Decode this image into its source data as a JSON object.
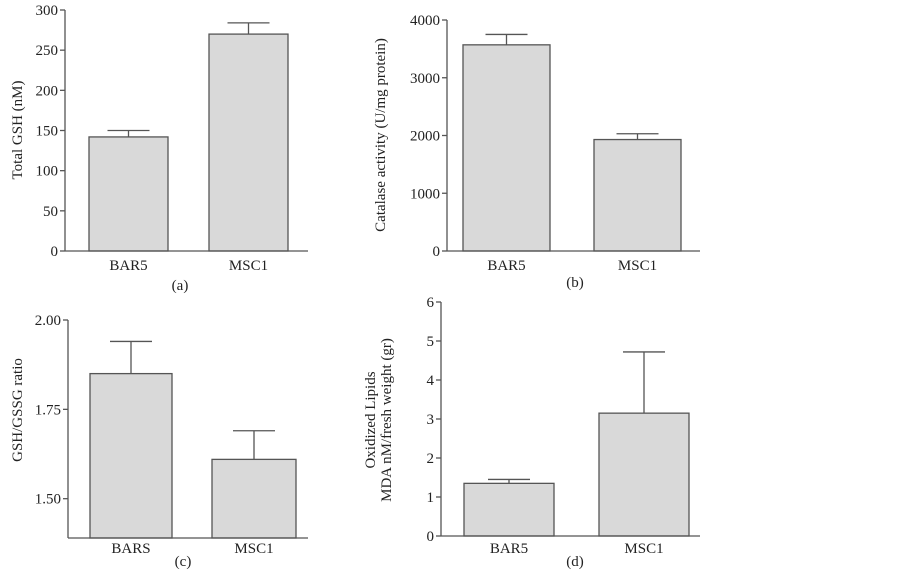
{
  "chart_data": [
    {
      "type": "bar",
      "panel_label": "(a)",
      "ylabel": "Total GSH (nM)",
      "categories": [
        "BAR5",
        "MSC1"
      ],
      "values": [
        142,
        270
      ],
      "error_upper": [
        150,
        284
      ],
      "ylim": [
        0,
        300
      ],
      "yticks": [
        "0",
        "50",
        "100",
        "150",
        "200",
        "250",
        "300"
      ],
      "ytick_values": [
        0,
        50,
        100,
        150,
        200,
        250,
        300
      ],
      "bar_color": "#d9d9d9",
      "grid": false
    },
    {
      "type": "bar",
      "panel_label": "(b)",
      "ylabel": "Catalase activity (U/mg protein)",
      "categories": [
        "BAR5",
        "MSC1"
      ],
      "values": [
        3570,
        1930
      ],
      "error_upper": [
        3750,
        2030
      ],
      "ylim": [
        0,
        4000
      ],
      "yticks": [
        "0",
        "1000",
        "2000",
        "3000",
        "4000"
      ],
      "ytick_values": [
        0,
        1000,
        2000,
        3000,
        4000
      ],
      "bar_color": "#d9d9d9",
      "grid": false
    },
    {
      "type": "bar",
      "panel_label": "(c)",
      "ylabel": "GSH/GSSG ratio",
      "categories": [
        "BARS",
        "MSC1"
      ],
      "values": [
        1.85,
        1.61
      ],
      "error_upper": [
        1.94,
        1.69
      ],
      "ylim": [
        1.39,
        2.0
      ],
      "yticks": [
        "1.50",
        "1.75",
        "2.00"
      ],
      "ytick_values": [
        1.5,
        1.75,
        2.0
      ],
      "bar_color": "#d9d9d9",
      "grid": false
    },
    {
      "type": "bar",
      "panel_label": "(d)",
      "ylabel": "Oxidized Lipids",
      "ylabel_line2": "MDA nM/fresh weight (gr)",
      "categories": [
        "BAR5",
        "MSC1"
      ],
      "values": [
        1.35,
        3.15
      ],
      "error_upper": [
        1.45,
        4.72
      ],
      "ylim": [
        0,
        6
      ],
      "yticks": [
        "0",
        "1",
        "2",
        "3",
        "4",
        "5",
        "6"
      ],
      "ytick_values": [
        0,
        1,
        2,
        3,
        4,
        5,
        6
      ],
      "bar_color": "#d9d9d9",
      "grid": false
    }
  ]
}
